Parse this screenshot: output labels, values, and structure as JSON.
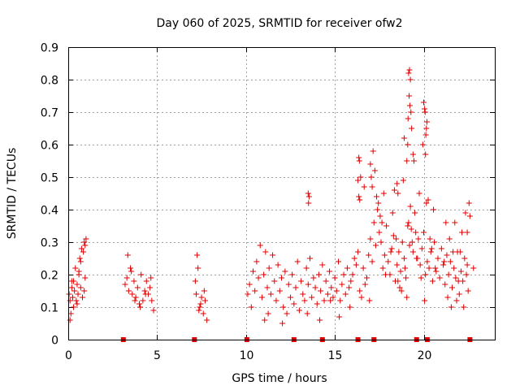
{
  "chart_data": {
    "type": "scatter",
    "title": "Day 060 of 2025, SRMTID for receiver ofw2",
    "xlabel": "GPS time / hours",
    "ylabel": "SRMTID / TECUs",
    "xlim": [
      0,
      24
    ],
    "ylim": [
      0,
      0.9
    ],
    "x_ticks": [
      0,
      5,
      10,
      15,
      20
    ],
    "x_tick_labels": [
      "0",
      "5",
      "10",
      "15",
      "20"
    ],
    "y_ticks": [
      0,
      0.1,
      0.2,
      0.3,
      0.4,
      0.5,
      0.6,
      0.7,
      0.8,
      0.9
    ],
    "y_tick_labels": [
      "0",
      "0.1",
      "0.2",
      "0.3",
      "0.4",
      "0.5",
      "0.6",
      "0.7",
      "0.8",
      "0.9"
    ],
    "grid": true,
    "marker": "+",
    "series_color": "#e00000",
    "series": [
      {
        "name": "SRMTID",
        "x": [
          0.05,
          0.1,
          0.15,
          0.2,
          0.25,
          0.3,
          0.35,
          0.4,
          0.45,
          0.5,
          0.55,
          0.6,
          0.65,
          0.7,
          0.75,
          0.8,
          0.85,
          0.9,
          0.95,
          1.0,
          0.1,
          0.3,
          0.5,
          0.7,
          0.9,
          0.2,
          0.6,
          0.95,
          3.2,
          3.3,
          3.4,
          3.5,
          3.6,
          3.7,
          3.8,
          3.9,
          4.0,
          4.1,
          4.2,
          4.3,
          4.4,
          4.5,
          4.6,
          4.7,
          4.8,
          3.35,
          3.55,
          3.75,
          4.05,
          4.35,
          4.65,
          7.2,
          7.3,
          7.4,
          7.5,
          7.6,
          7.7,
          7.8,
          7.25,
          7.45,
          7.65,
          7.15,
          7.35,
          10.1,
          10.2,
          10.3,
          10.4,
          10.5,
          10.6,
          10.7,
          10.8,
          10.9,
          11.0,
          11.1,
          11.2,
          11.3,
          11.4,
          11.5,
          11.6,
          11.7,
          11.8,
          11.9,
          12.0,
          12.1,
          12.2,
          12.3,
          12.4,
          12.5,
          12.6,
          12.7,
          12.8,
          12.9,
          13.0,
          13.1,
          13.2,
          13.3,
          13.4,
          13.5,
          13.6,
          13.7,
          13.8,
          13.9,
          14.0,
          14.1,
          14.2,
          14.3,
          14.4,
          14.5,
          14.6,
          14.7,
          14.8,
          14.9,
          15.0,
          15.1,
          15.2,
          15.3,
          15.4,
          15.5,
          15.6,
          15.7,
          15.8,
          15.9,
          16.0,
          16.1,
          16.2,
          16.3,
          16.4,
          16.5,
          16.6,
          16.7,
          16.8,
          16.9,
          17.0,
          17.1,
          17.2,
          17.3,
          17.4,
          17.5,
          17.6,
          17.7,
          17.8,
          17.9,
          18.0,
          18.1,
          18.2,
          18.3,
          18.4,
          18.5,
          18.6,
          18.7,
          18.8,
          18.9,
          19.0,
          19.1,
          19.2,
          19.3,
          19.4,
          19.5,
          19.6,
          19.7,
          19.8,
          19.9,
          20.0,
          20.1,
          20.2,
          20.3,
          20.4,
          20.5,
          20.6,
          20.7,
          20.8,
          20.9,
          21.0,
          21.1,
          21.2,
          21.3,
          21.4,
          21.5,
          21.6,
          21.7,
          21.8,
          21.9,
          22.0,
          22.1,
          22.2,
          22.3,
          22.4,
          22.5,
          22.8,
          11.05,
          11.25,
          12.05,
          13.45,
          13.55,
          14.15,
          14.75,
          15.25,
          15.85,
          16.35,
          16.45,
          16.65,
          16.95,
          17.15,
          17.25,
          17.35,
          17.45,
          17.55,
          17.65,
          17.75,
          17.85,
          18.15,
          18.25,
          18.35,
          18.45,
          18.55,
          18.65,
          18.75,
          18.85,
          18.95,
          19.05,
          19.15,
          19.25,
          19.35,
          19.45,
          19.55,
          19.65,
          19.75,
          19.85,
          19.95,
          20.05,
          20.15,
          20.25,
          20.35,
          20.45,
          20.55,
          20.65,
          21.15,
          21.25,
          21.35,
          21.45,
          21.55,
          21.65,
          21.75,
          21.85,
          21.95,
          22.05,
          22.15,
          22.25,
          22.35,
          22.45,
          19.15,
          19.2,
          19.25,
          19.18,
          19.22,
          19.28,
          19.12,
          19.32,
          19.05,
          18.9,
          19.4,
          19.1,
          20.0,
          20.05,
          20.1,
          20.12,
          20.15,
          20.08,
          20.18,
          16.3,
          16.35,
          16.4,
          16.38,
          17.0,
          17.05,
          17.1,
          18.5,
          18.55,
          13.5,
          13.52,
          22.55,
          22.6,
          22.45
        ],
        "y": [
          0.14,
          0.12,
          0.08,
          0.16,
          0.13,
          0.18,
          0.15,
          0.22,
          0.12,
          0.17,
          0.14,
          0.2,
          0.25,
          0.16,
          0.28,
          0.13,
          0.27,
          0.3,
          0.19,
          0.31,
          0.06,
          0.1,
          0.11,
          0.24,
          0.15,
          0.18,
          0.21,
          0.29,
          0.17,
          0.19,
          0.15,
          0.22,
          0.14,
          0.18,
          0.13,
          0.16,
          0.11,
          0.2,
          0.12,
          0.15,
          0.18,
          0.14,
          0.16,
          0.12,
          0.09,
          0.26,
          0.21,
          0.12,
          0.1,
          0.14,
          0.19,
          0.14,
          0.22,
          0.1,
          0.13,
          0.08,
          0.12,
          0.06,
          0.26,
          0.11,
          0.15,
          0.18,
          0.09,
          0.14,
          0.17,
          0.1,
          0.21,
          0.15,
          0.24,
          0.19,
          0.29,
          0.13,
          0.2,
          0.27,
          0.16,
          0.22,
          0.14,
          0.26,
          0.18,
          0.12,
          0.23,
          0.15,
          0.19,
          0.1,
          0.21,
          0.08,
          0.17,
          0.13,
          0.2,
          0.11,
          0.16,
          0.24,
          0.09,
          0.18,
          0.14,
          0.12,
          0.22,
          0.17,
          0.25,
          0.13,
          0.19,
          0.16,
          0.11,
          0.2,
          0.15,
          0.23,
          0.12,
          0.18,
          0.14,
          0.21,
          0.16,
          0.13,
          0.19,
          0.15,
          0.24,
          0.12,
          0.17,
          0.2,
          0.14,
          0.22,
          0.16,
          0.18,
          0.2,
          0.25,
          0.23,
          0.27,
          0.15,
          0.13,
          0.22,
          0.17,
          0.19,
          0.26,
          0.31,
          0.24,
          0.36,
          0.29,
          0.4,
          0.33,
          0.3,
          0.22,
          0.26,
          0.35,
          0.24,
          0.2,
          0.28,
          0.32,
          0.18,
          0.23,
          0.27,
          0.21,
          0.3,
          0.25,
          0.19,
          0.35,
          0.29,
          0.34,
          0.27,
          0.39,
          0.25,
          0.31,
          0.23,
          0.28,
          0.33,
          0.2,
          0.24,
          0.22,
          0.27,
          0.18,
          0.3,
          0.21,
          0.25,
          0.19,
          0.28,
          0.23,
          0.17,
          0.26,
          0.2,
          0.24,
          0.16,
          0.22,
          0.19,
          0.27,
          0.14,
          0.21,
          0.18,
          0.25,
          0.2,
          0.15,
          0.22,
          0.06,
          0.08,
          0.05,
          0.08,
          0.44,
          0.06,
          0.12,
          0.07,
          0.1,
          0.56,
          0.5,
          0.47,
          0.12,
          0.58,
          0.52,
          0.44,
          0.42,
          0.38,
          0.36,
          0.45,
          0.2,
          0.27,
          0.39,
          0.46,
          0.31,
          0.18,
          0.16,
          0.15,
          0.49,
          0.22,
          0.13,
          0.36,
          0.41,
          0.3,
          0.55,
          0.33,
          0.25,
          0.45,
          0.19,
          0.6,
          0.12,
          0.42,
          0.43,
          0.31,
          0.28,
          0.4,
          0.22,
          0.24,
          0.36,
          0.13,
          0.31,
          0.1,
          0.27,
          0.36,
          0.12,
          0.18,
          0.27,
          0.33,
          0.1,
          0.39,
          0.23,
          0.82,
          0.83,
          0.8,
          0.75,
          0.72,
          0.7,
          0.68,
          0.65,
          0.55,
          0.62,
          0.57,
          0.6,
          0.73,
          0.71,
          0.57,
          0.63,
          0.65,
          0.7,
          0.67,
          0.49,
          0.44,
          0.43,
          0.55,
          0.54,
          0.5,
          0.47,
          0.48,
          0.45,
          0.45,
          0.42,
          0.42,
          0.38,
          0.33
        ]
      }
    ],
    "gap_markers_x": [
      3.1,
      7.1,
      10.05,
      12.7,
      14.3,
      16.3,
      17.2,
      19.6,
      20.2,
      22.6
    ],
    "gap_markers_y": 0
  }
}
